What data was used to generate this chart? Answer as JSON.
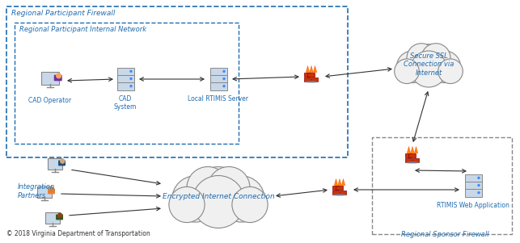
{
  "figsize": [
    6.43,
    3.01
  ],
  "dpi": 100,
  "bg_color": "#ffffff",
  "blue_text": "#1F6CB0",
  "box_edge_blue": "#1F6CB0",
  "box_edge_gray": "#888888",
  "arrow_color": "#333333",
  "copyright_text": "© 2018 Virginia Department of Transportation",
  "title_rp_firewall": "Regional Participant Firewall",
  "title_rp_network": "Regional Participant Internal Network",
  "title_rs_firewall": "Regional Sponsor Firewall",
  "label_cad_op": "CAD Operator",
  "label_cad_sys": "CAD\nSystem",
  "label_local_rtimis": "Local RTIMIS Server",
  "label_ssl": "Secure SSL\nConnection via\nInternet",
  "label_encrypted": "Encrypted Internet Connection",
  "label_rtimis_web": "RTIMIS Web Application",
  "label_int_partners": "Integration\nPartners"
}
